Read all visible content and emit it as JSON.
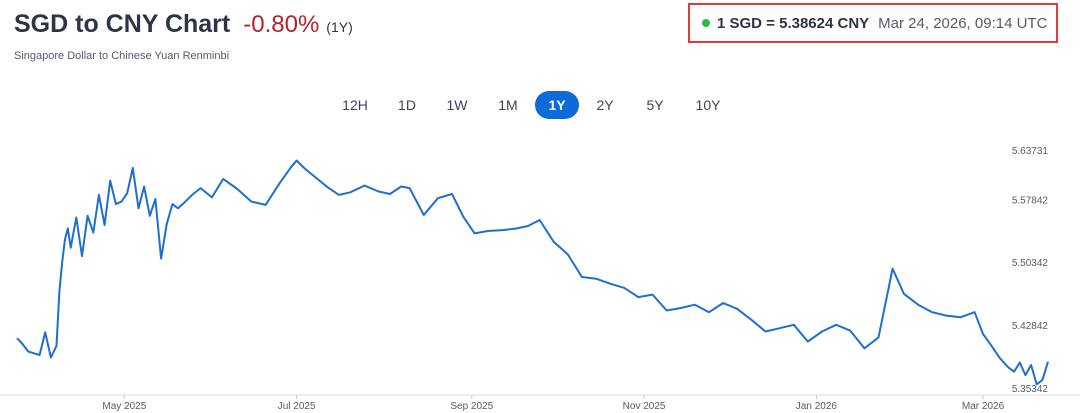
{
  "header": {
    "title": "SGD to CNY Chart",
    "change": "-0.80%",
    "period": "(1Y)",
    "subtitle": "Singapore Dollar to Chinese Yuan Renminbi"
  },
  "rate": {
    "text": "1 SGD = 5.38624 CNY",
    "time": "Mar 24, 2026, 09:14 UTC",
    "live_color": "#2db84d"
  },
  "ranges": [
    {
      "label": "12H",
      "active": false
    },
    {
      "label": "1D",
      "active": false
    },
    {
      "label": "1W",
      "active": false
    },
    {
      "label": "1M",
      "active": false
    },
    {
      "label": "1Y",
      "active": true
    },
    {
      "label": "2Y",
      "active": false
    },
    {
      "label": "5Y",
      "active": false
    },
    {
      "label": "10Y",
      "active": false
    }
  ],
  "colors": {
    "line": "#1f6fd0",
    "accent": "#0e6ad9",
    "negative": "#b4232c"
  },
  "chart_data": {
    "type": "line",
    "title": "SGD to CNY Chart",
    "xlabel": "",
    "ylabel": "",
    "grid": false,
    "x_ticks": [
      "May 2025",
      "Jul 2025",
      "Sep 2025",
      "Nov 2025",
      "Jan 2026",
      "Mar 2026"
    ],
    "x_tick_dates": [
      "2025-05-01",
      "2025-07-01",
      "2025-09-01",
      "2025-11-01",
      "2026-01-01",
      "2026-03-01"
    ],
    "y_ticks": [
      "5.63731",
      "5.57842",
      "5.50342",
      "5.42842",
      "5.35342"
    ],
    "y_tick_values": [
      5.63731,
      5.57842,
      5.50342,
      5.42842,
      5.35342
    ],
    "x_range": [
      "2025-03-24",
      "2026-03-24"
    ],
    "series": [
      {
        "x": [
          "2025-03-24",
          "2025-03-26",
          "2025-03-28",
          "2025-03-30",
          "2025-04-01",
          "2025-04-03",
          "2025-04-05",
          "2025-04-07",
          "2025-04-08",
          "2025-04-09",
          "2025-04-10",
          "2025-04-11",
          "2025-04-12",
          "2025-04-14",
          "2025-04-16",
          "2025-04-18",
          "2025-04-20",
          "2025-04-22",
          "2025-04-24",
          "2025-04-26",
          "2025-04-28",
          "2025-04-30",
          "2025-05-02",
          "2025-05-04",
          "2025-05-06",
          "2025-05-08",
          "2025-05-10",
          "2025-05-12",
          "2025-05-14",
          "2025-05-16",
          "2025-05-18",
          "2025-05-20",
          "2025-05-22",
          "2025-05-25",
          "2025-05-28",
          "2025-06-01",
          "2025-06-05",
          "2025-06-10",
          "2025-06-15",
          "2025-06-20",
          "2025-06-25",
          "2025-06-29",
          "2025-07-01",
          "2025-07-04",
          "2025-07-08",
          "2025-07-12",
          "2025-07-16",
          "2025-07-20",
          "2025-07-25",
          "2025-07-30",
          "2025-08-03",
          "2025-08-07",
          "2025-08-10",
          "2025-08-15",
          "2025-08-20",
          "2025-08-25",
          "2025-08-29",
          "2025-09-02",
          "2025-09-07",
          "2025-09-12",
          "2025-09-17",
          "2025-09-21",
          "2025-09-25",
          "2025-09-30",
          "2025-10-05",
          "2025-10-10",
          "2025-10-15",
          "2025-10-20",
          "2025-10-25",
          "2025-10-30",
          "2025-11-04",
          "2025-11-09",
          "2025-11-14",
          "2025-11-19",
          "2025-11-24",
          "2025-11-29",
          "2025-12-04",
          "2025-12-09",
          "2025-12-14",
          "2025-12-19",
          "2025-12-24",
          "2025-12-29",
          "2026-01-03",
          "2026-01-08",
          "2026-01-13",
          "2026-01-18",
          "2026-01-23",
          "2026-01-28",
          "2026-02-01",
          "2026-02-06",
          "2026-02-11",
          "2026-02-16",
          "2026-02-21",
          "2026-02-26",
          "2026-03-01",
          "2026-03-04",
          "2026-03-07",
          "2026-03-10",
          "2026-03-12",
          "2026-03-14",
          "2026-03-16",
          "2026-03-18",
          "2026-03-20",
          "2026-03-22",
          "2026-03-24"
        ],
        "values": [
          5.414,
          5.407,
          5.398,
          5.396,
          5.394,
          5.421,
          5.391,
          5.405,
          5.47,
          5.505,
          5.532,
          5.545,
          5.522,
          5.558,
          5.512,
          5.56,
          5.54,
          5.585,
          5.549,
          5.602,
          5.574,
          5.577,
          5.587,
          5.617,
          5.569,
          5.595,
          5.56,
          5.58,
          5.509,
          5.55,
          5.574,
          5.569,
          5.575,
          5.585,
          5.593,
          5.582,
          5.604,
          5.592,
          5.577,
          5.573,
          5.599,
          5.618,
          5.626,
          5.616,
          5.605,
          5.594,
          5.585,
          5.588,
          5.596,
          5.589,
          5.586,
          5.595,
          5.593,
          5.561,
          5.581,
          5.586,
          5.559,
          5.539,
          5.542,
          5.543,
          5.545,
          5.548,
          5.555,
          5.529,
          5.514,
          5.487,
          5.485,
          5.479,
          5.474,
          5.463,
          5.466,
          5.447,
          5.45,
          5.454,
          5.445,
          5.456,
          5.449,
          5.436,
          5.422,
          5.426,
          5.43,
          5.41,
          5.422,
          5.43,
          5.423,
          5.402,
          5.415,
          5.497,
          5.467,
          5.454,
          5.445,
          5.441,
          5.439,
          5.445,
          5.419,
          5.405,
          5.39,
          5.379,
          5.374,
          5.385,
          5.37,
          5.382,
          5.359,
          5.364,
          5.386
        ]
      }
    ]
  }
}
